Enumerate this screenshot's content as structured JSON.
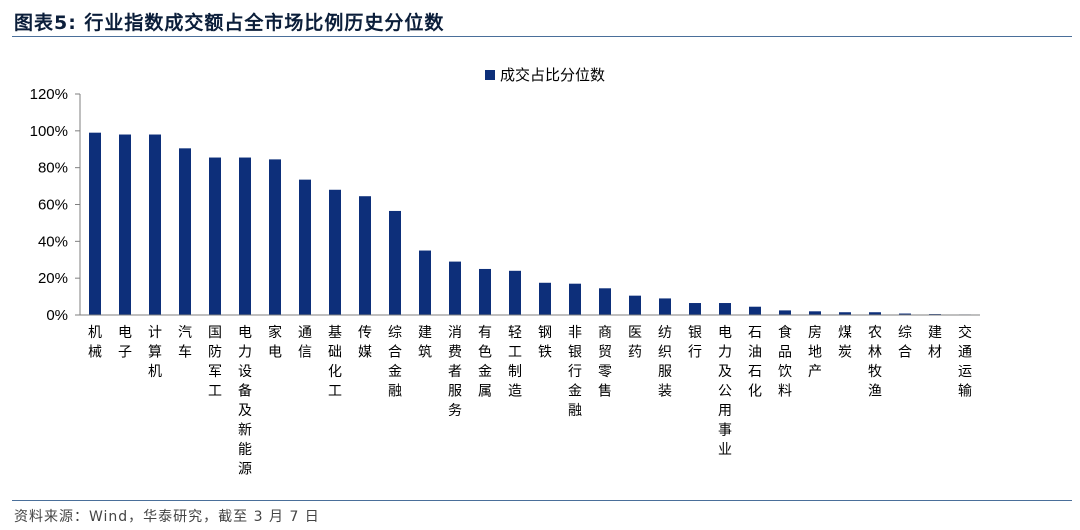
{
  "figure": {
    "title": "图表5:  行业指数成交额占全市场比例历史分位数",
    "source": "资料来源：Wind，华泰研究，截至 3 月 7 日"
  },
  "colors": {
    "bar": "#0d2f7a",
    "axis": "#7f7f7f",
    "rule": "#4a6f9a"
  },
  "chart_data": {
    "type": "bar",
    "title": "",
    "xlabel": "",
    "ylabel": "",
    "ylim": [
      0,
      120
    ],
    "yticks": [
      "0%",
      "20%",
      "40%",
      "60%",
      "80%",
      "100%",
      "120%"
    ],
    "grid": false,
    "legend_position": "top-center",
    "categories": [
      "机械",
      "电子",
      "计算机",
      "汽车",
      "国防军工",
      "电力设备及新能源",
      "家电",
      "通信",
      "基础化工",
      "传媒",
      "综合金融",
      "建筑",
      "消费者服务",
      "有色金属",
      "轻工制造",
      "钢铁",
      "非银行金融",
      "商贸零售",
      "医药",
      "纺织服装",
      "银行",
      "电力及公用事业",
      "石油石化",
      "食品饮料",
      "房地产",
      "煤炭",
      "农林牧渔",
      "综合",
      "建材",
      "交通运输"
    ],
    "series": [
      {
        "name": "成交占比分位数",
        "values": [
          99,
          98,
          98,
          90.5,
          85.5,
          85.5,
          84.5,
          73.5,
          68,
          64.5,
          56.5,
          35,
          29,
          25,
          24,
          17.5,
          17,
          14.5,
          10.5,
          9,
          6.5,
          6.5,
          4.5,
          2.5,
          2,
          1.5,
          1.5,
          0.8,
          0.5,
          0.3
        ]
      }
    ]
  }
}
